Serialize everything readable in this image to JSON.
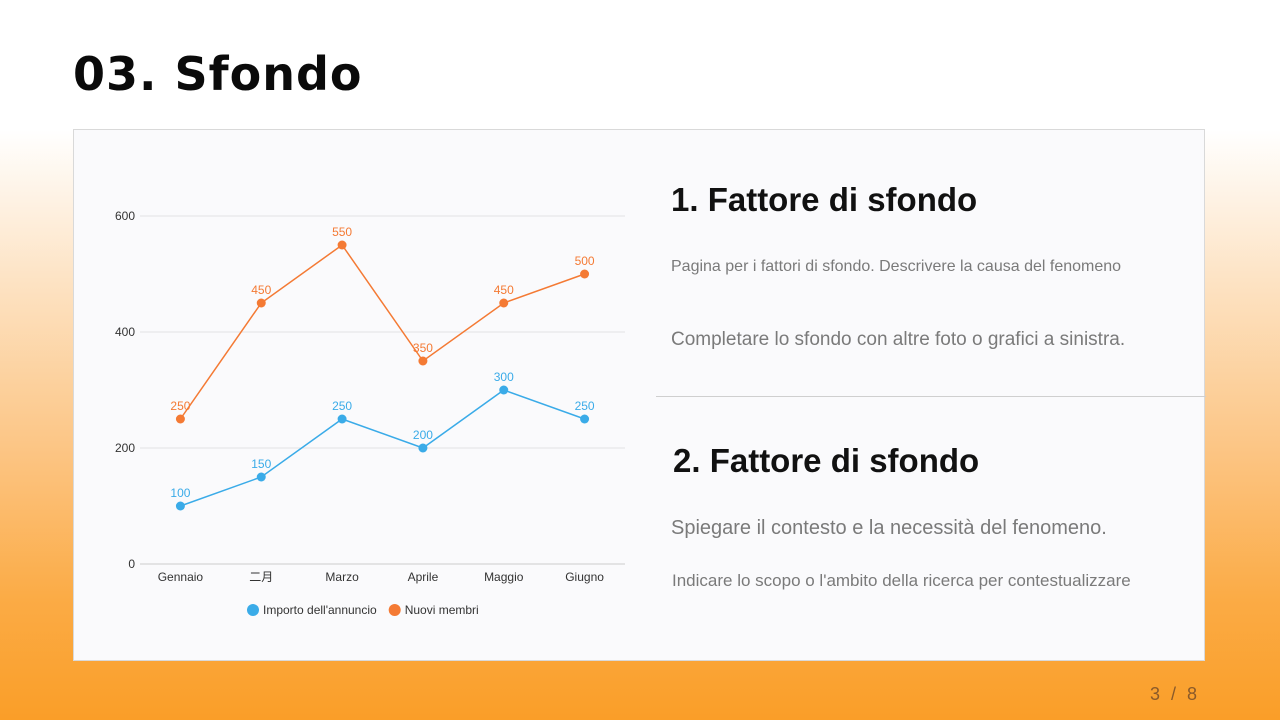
{
  "slide": {
    "title": "03. Sfondo",
    "page_indicator": "3 / 8"
  },
  "sections": [
    {
      "heading": "1. Fattore di sfondo",
      "lines": [
        "Pagina per i fattori di sfondo. Descrivere la causa del fenomeno",
        "Completare lo sfondo con altre foto o grafici a sinistra."
      ]
    },
    {
      "heading": "2. Fattore di sfondo",
      "lines": [
        "Spiegare il contesto e la necessità del fenomeno.",
        "Indicare lo scopo o l'ambito della ricerca per contestualizzare"
      ]
    }
  ],
  "colors": {
    "series_blue": "#3aabe8",
    "series_orange": "#f47a34",
    "grid": "#e3e3e3",
    "page_indicator": "#8a5a2a"
  },
  "chart_data": {
    "type": "line",
    "title": "",
    "xlabel": "",
    "ylabel": "",
    "categories": [
      "Gennaio",
      "二月",
      "Marzo",
      "Aprile",
      "Maggio",
      "Giugno"
    ],
    "series": [
      {
        "name": "Importo dell'annuncio",
        "color": "#3aabe8",
        "values": [
          100,
          150,
          250,
          200,
          300,
          250
        ]
      },
      {
        "name": "Nuovi membri",
        "color": "#f47a34",
        "values": [
          250,
          450,
          550,
          350,
          450,
          500
        ]
      }
    ],
    "y_ticks": [
      0,
      200,
      400,
      600
    ],
    "ylim": [
      0,
      600
    ],
    "grid": true,
    "data_labels": true,
    "legend_position": "bottom-center"
  }
}
